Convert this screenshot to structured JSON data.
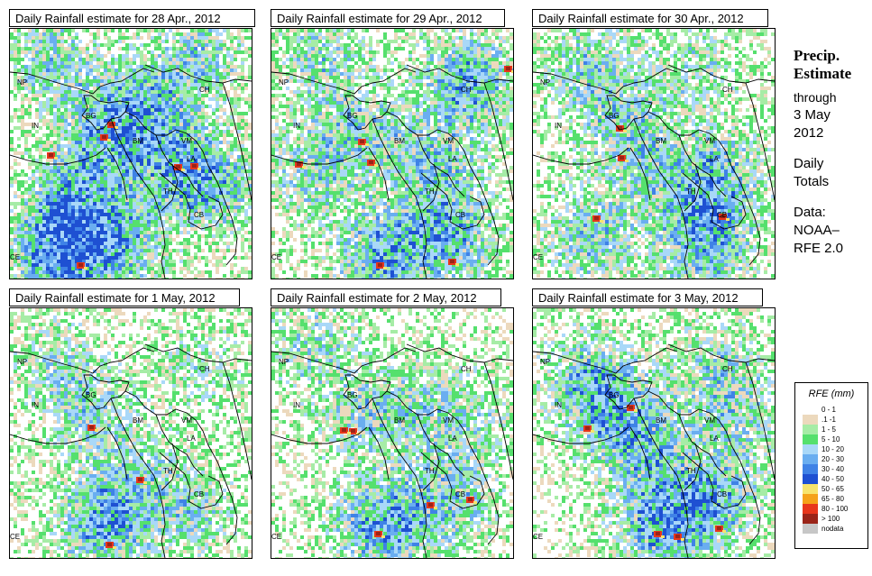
{
  "panels": [
    {
      "title": "Daily Rainfall estimate for  28 Apr., 2012"
    },
    {
      "title": "Daily Rainfall estimate for  29 Apr., 2012"
    },
    {
      "title": "Daily Rainfall estimate for  30 Apr., 2012"
    },
    {
      "title": "Daily Rainfall estimate for  1 May, 2012"
    },
    {
      "title": "Daily Rainfall estimate for  2 May, 2012"
    },
    {
      "title": "Daily Rainfall estimate for  3 May, 2012"
    }
  ],
  "country_labels": {
    "np": "NP",
    "ch": "CH",
    "in": "IN",
    "bg": "BG",
    "bm": "BM",
    "vm": "VM",
    "la": "LA",
    "th": "TH",
    "cb": "CB",
    "ce": "CE"
  },
  "sidebar": {
    "heading_1": "Precip.",
    "heading_2": "Estimate",
    "through_label": "through",
    "date_line1": "3 May",
    "date_line2": "2012",
    "type_line1": "Daily",
    "type_line2": "Totals",
    "source_line1": "Data:",
    "source_line2": "NOAA–",
    "source_line3": "RFE 2.0"
  },
  "legend": {
    "title": "RFE (mm)",
    "items": [
      {
        "label": "0 - 1",
        "color": "#ffffff"
      },
      {
        "label": ".1 -1",
        "color": "#ecd9bd"
      },
      {
        "label": "1 - 5",
        "color": "#a6eca6"
      },
      {
        "label": "5 - 10",
        "color": "#55e06d"
      },
      {
        "label": "10 - 20",
        "color": "#a9d8f8"
      },
      {
        "label": "20 - 30",
        "color": "#6aaef0"
      },
      {
        "label": "30 - 40",
        "color": "#3f82e6"
      },
      {
        "label": "40 - 50",
        "color": "#1e50d2"
      },
      {
        "label": "50 - 65",
        "color": "#f7e46c"
      },
      {
        "label": "65 - 80",
        "color": "#f5a219"
      },
      {
        "label": "80 - 100",
        "color": "#e8361b"
      },
      {
        "label": "> 100",
        "color": "#9a2418"
      },
      {
        "label": "nodata",
        "color": "#c7c7c7"
      }
    ]
  }
}
